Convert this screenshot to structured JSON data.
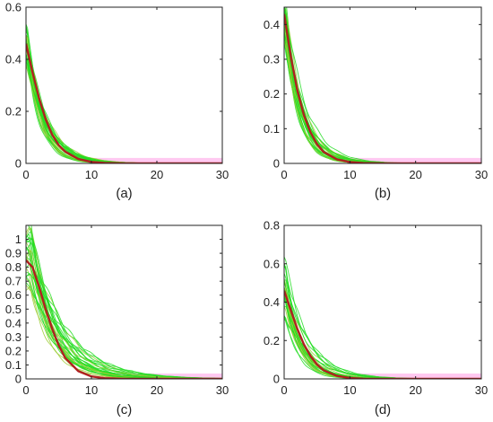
{
  "chart_data": [
    {
      "type": "line",
      "panel_label": "(a)",
      "xlim": [
        0,
        30
      ],
      "ylim": [
        0,
        0.6
      ],
      "xticks": [
        0,
        10,
        20,
        30
      ],
      "xtick_labels": [
        "0",
        "10",
        "20",
        "30"
      ],
      "yticks": [
        0,
        0.2,
        0.4,
        0.6
      ],
      "ytick_labels": [
        "0",
        "0.2",
        "0.4",
        "0.6"
      ],
      "mean_curve": {
        "color": "#b02020",
        "x": [
          0,
          1,
          2,
          3,
          4,
          5,
          6,
          8,
          10,
          12,
          15,
          20,
          25,
          30
        ],
        "y": [
          0.46,
          0.35,
          0.25,
          0.17,
          0.11,
          0.07,
          0.045,
          0.017,
          0.006,
          0.002,
          0,
          0,
          0,
          0
        ]
      },
      "sample_curves": {
        "color": "#22dd22",
        "count": 30,
        "peak_range": [
          0.38,
          0.52
        ],
        "decay_range": [
          0.3,
          0.5
        ]
      },
      "band": {
        "color": "#ff9de6",
        "x_start": 10
      }
    },
    {
      "type": "line",
      "panel_label": "(b)",
      "xlim": [
        0,
        30
      ],
      "ylim": [
        0,
        0.45
      ],
      "xticks": [
        0,
        10,
        20,
        30
      ],
      "xtick_labels": [
        "0",
        "10",
        "20",
        "30"
      ],
      "yticks": [
        0,
        0.1,
        0.2,
        0.3,
        0.4
      ],
      "ytick_labels": [
        "0",
        "0.1",
        "0.2",
        "0.3",
        "0.4"
      ],
      "mean_curve": {
        "color": "#b02020",
        "x": [
          0,
          1,
          2,
          3,
          4,
          5,
          6,
          8,
          10,
          12,
          15,
          20,
          25,
          30
        ],
        "y": [
          0.43,
          0.31,
          0.21,
          0.14,
          0.09,
          0.055,
          0.033,
          0.012,
          0.004,
          0.001,
          0,
          0,
          0,
          0
        ]
      },
      "sample_curves": {
        "color": "#22dd22",
        "count": 30,
        "peak_range": [
          0.36,
          0.47
        ],
        "decay_range": [
          0.32,
          0.52
        ]
      },
      "band": {
        "color": "#ff9de6",
        "x_start": 10
      }
    },
    {
      "type": "line",
      "panel_label": "(c)",
      "xlim": [
        0,
        30
      ],
      "ylim": [
        0,
        1.1
      ],
      "xticks": [
        0,
        10,
        20,
        30
      ],
      "xtick_labels": [
        "0",
        "10",
        "20",
        "30"
      ],
      "yticks": [
        0,
        0.1,
        0.2,
        0.3,
        0.4,
        0.5,
        0.6,
        0.7,
        0.8,
        0.9,
        1
      ],
      "ytick_labels": [
        "0",
        "0.1",
        "0.2",
        "0.3",
        "0.4",
        "0.5",
        "0.6",
        "0.7",
        "0.8",
        "0.9",
        "1"
      ],
      "mean_curve": {
        "color": "#b02020",
        "x": [
          0,
          1,
          2,
          3,
          4,
          5,
          6,
          8,
          10,
          12,
          15,
          20,
          25,
          30
        ],
        "y": [
          0.85,
          0.8,
          0.66,
          0.5,
          0.36,
          0.24,
          0.15,
          0.055,
          0.018,
          0.005,
          0,
          0,
          0,
          0
        ]
      },
      "sample_curves": {
        "color": "#22dd22",
        "count": 30,
        "peak_range": [
          0.65,
          1.1
        ],
        "decay_range": [
          0.18,
          0.32
        ]
      },
      "band": {
        "color": "#ff9de6",
        "x_start": 12
      }
    },
    {
      "type": "line",
      "panel_label": "(d)",
      "xlim": [
        0,
        30
      ],
      "ylim": [
        0,
        0.8
      ],
      "xticks": [
        0,
        10,
        20,
        30
      ],
      "xtick_labels": [
        "0",
        "10",
        "20",
        "30"
      ],
      "yticks": [
        0,
        0.2,
        0.4,
        0.6,
        0.8
      ],
      "ytick_labels": [
        "0",
        "0.2",
        "0.4",
        "0.6",
        "0.8"
      ],
      "mean_curve": {
        "color": "#b02020",
        "x": [
          0,
          1,
          2,
          3,
          4,
          5,
          6,
          8,
          10,
          12,
          15,
          20,
          25,
          30
        ],
        "y": [
          0.46,
          0.36,
          0.26,
          0.18,
          0.12,
          0.075,
          0.045,
          0.016,
          0.005,
          0.001,
          0,
          0,
          0,
          0
        ]
      },
      "sample_curves": {
        "color": "#22dd22",
        "count": 30,
        "peak_range": [
          0.3,
          0.65
        ],
        "decay_range": [
          0.25,
          0.5
        ]
      },
      "band": {
        "color": "#ff9de6",
        "x_start": 10
      }
    }
  ]
}
